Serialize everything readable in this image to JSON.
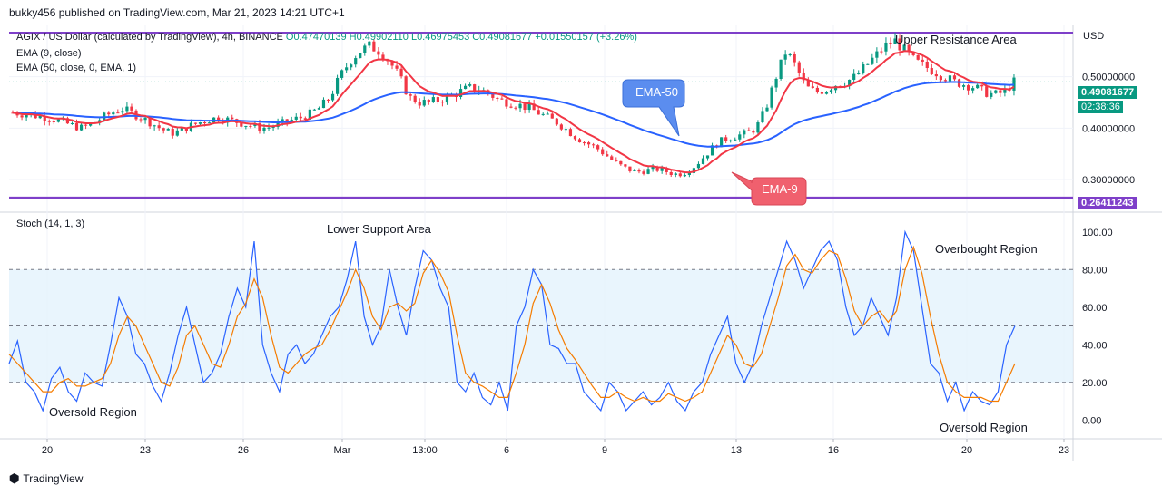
{
  "header": {
    "published": "bukky456 published on TradingView.com, Mar 21, 2023 14:21 UTC+1"
  },
  "legend": {
    "symbol": "AGIX / US Dollar (calculated by TradingView), 4h, BINANCE",
    "ohlc": "O0.47470139  H0.49902110  L0.46975453  C0.49081677  +0.01550157 (+3.26%)",
    "ema9": "EMA (9, close)",
    "ema50": "EMA (50, close, 0, EMA, 1)",
    "stoch": "Stoch (14, 1, 3)"
  },
  "currency": "USD",
  "price_tags": {
    "current": "0.49081677",
    "countdown": "02:38:36",
    "support": "0.26411243"
  },
  "annotations": {
    "upper": "Upper Resistance Area",
    "lower": "Lower Support Area",
    "ema50": "EMA-50",
    "ema9": "EMA-9",
    "overbought": "Overbought Region",
    "oversold_left": "Oversold Region",
    "oversold_right": "Oversold Region"
  },
  "footer": {
    "brand": "TradingView"
  },
  "colors": {
    "up": "#089981",
    "down": "#f23645",
    "ema9": "#f23645",
    "ema50": "#2962ff",
    "level": "#7e3fc9",
    "stoch_k": "#2962ff",
    "stoch_d": "#f57c00",
    "ema50_box": "#5b8def",
    "ema9_box": "#f0606e"
  },
  "chart_data": [
    {
      "type": "candlestick",
      "title": "AGIX / US Dollar, 4h, BINANCE",
      "ylim": [
        0.24,
        0.6
      ],
      "y_ticks": [
        0.3,
        0.4,
        0.5
      ],
      "y_tick_labels": [
        "0.30000000",
        "0.40000000",
        "0.50000000"
      ],
      "x_tick_labels": [
        "20",
        "23",
        "26",
        "Mar",
        "13:00",
        "6",
        "9",
        "13",
        "16",
        "20",
        "23"
      ],
      "levels": [
        {
          "label": "Upper Resistance Area",
          "value": 0.585
        },
        {
          "label": "Lower Support Area",
          "value": 0.26411243
        }
      ],
      "price_anchors": [
        0.43,
        0.428,
        0.425,
        0.422,
        0.418,
        0.412,
        0.405,
        0.4,
        0.408,
        0.42,
        0.43,
        0.438,
        0.43,
        0.42,
        0.41,
        0.398,
        0.39,
        0.395,
        0.405,
        0.412,
        0.418,
        0.42,
        0.415,
        0.41,
        0.405,
        0.4,
        0.402,
        0.408,
        0.415,
        0.42,
        0.428,
        0.44,
        0.46,
        0.5,
        0.53,
        0.55,
        0.56,
        0.55,
        0.53,
        0.5,
        0.46,
        0.45,
        0.45,
        0.455,
        0.46,
        0.47,
        0.478,
        0.476,
        0.468,
        0.455,
        0.45,
        0.445,
        0.44,
        0.43,
        0.42,
        0.41,
        0.395,
        0.38,
        0.37,
        0.36,
        0.345,
        0.33,
        0.32,
        0.315,
        0.318,
        0.32,
        0.315,
        0.31,
        0.315,
        0.33,
        0.35,
        0.37,
        0.38,
        0.385,
        0.39,
        0.4,
        0.44,
        0.5,
        0.55,
        0.52,
        0.48,
        0.47,
        0.475,
        0.485,
        0.49,
        0.5,
        0.52,
        0.54,
        0.56,
        0.57,
        0.55,
        0.53,
        0.52,
        0.51,
        0.5,
        0.49,
        0.485,
        0.48,
        0.47,
        0.465,
        0.47,
        0.49
      ],
      "series": [
        {
          "name": "EMA (9, close)",
          "color": "#f23645"
        },
        {
          "name": "EMA (50, close, 0, EMA, 1)",
          "color": "#2962ff"
        }
      ]
    },
    {
      "type": "line",
      "title": "Stoch (14, 1, 3)",
      "ylim": [
        -10,
        110
      ],
      "y_ticks": [
        0,
        20,
        40,
        60,
        80,
        100
      ],
      "y_tick_labels": [
        "0.00",
        "20.00",
        "40.00",
        "60.00",
        "80.00",
        "100.00"
      ],
      "bands": [
        20,
        50,
        80
      ],
      "series": [
        {
          "name": "%K",
          "color": "#2962ff",
          "values": [
            30,
            42,
            20,
            15,
            5,
            22,
            28,
            15,
            10,
            25,
            20,
            18,
            40,
            65,
            55,
            35,
            30,
            18,
            10,
            25,
            45,
            60,
            40,
            20,
            25,
            35,
            55,
            70,
            60,
            95,
            40,
            25,
            15,
            35,
            40,
            30,
            35,
            45,
            55,
            60,
            75,
            95,
            55,
            40,
            50,
            80,
            60,
            45,
            70,
            90,
            85,
            70,
            60,
            20,
            15,
            25,
            12,
            8,
            20,
            5,
            50,
            60,
            80,
            72,
            40,
            38,
            30,
            30,
            15,
            10,
            5,
            20,
            15,
            5,
            10,
            15,
            8,
            12,
            20,
            10,
            5,
            15,
            20,
            35,
            45,
            55,
            30,
            20,
            30,
            50,
            65,
            80,
            95,
            85,
            70,
            80,
            90,
            95,
            85,
            60,
            45,
            50,
            65,
            55,
            45,
            65,
            100,
            90,
            60,
            30,
            25,
            10,
            20,
            5,
            15,
            10,
            8,
            15,
            40,
            50
          ]
        },
        {
          "name": "%D",
          "color": "#f57c00",
          "values": [
            35,
            30,
            25,
            20,
            15,
            15,
            20,
            22,
            18,
            18,
            20,
            22,
            30,
            45,
            55,
            50,
            40,
            30,
            20,
            18,
            28,
            45,
            50,
            40,
            30,
            28,
            40,
            55,
            62,
            75,
            65,
            45,
            28,
            25,
            30,
            35,
            38,
            40,
            48,
            58,
            68,
            80,
            70,
            55,
            48,
            60,
            62,
            58,
            62,
            78,
            85,
            78,
            68,
            45,
            25,
            20,
            18,
            15,
            12,
            12,
            25,
            40,
            62,
            72,
            62,
            48,
            38,
            32,
            25,
            18,
            12,
            12,
            15,
            12,
            10,
            12,
            10,
            10,
            14,
            12,
            10,
            12,
            15,
            25,
            35,
            45,
            40,
            30,
            28,
            35,
            50,
            65,
            82,
            88,
            80,
            78,
            85,
            90,
            88,
            75,
            58,
            50,
            55,
            58,
            52,
            58,
            80,
            92,
            78,
            55,
            35,
            20,
            15,
            12,
            12,
            12,
            10,
            10,
            20,
            30
          ]
        }
      ]
    }
  ]
}
